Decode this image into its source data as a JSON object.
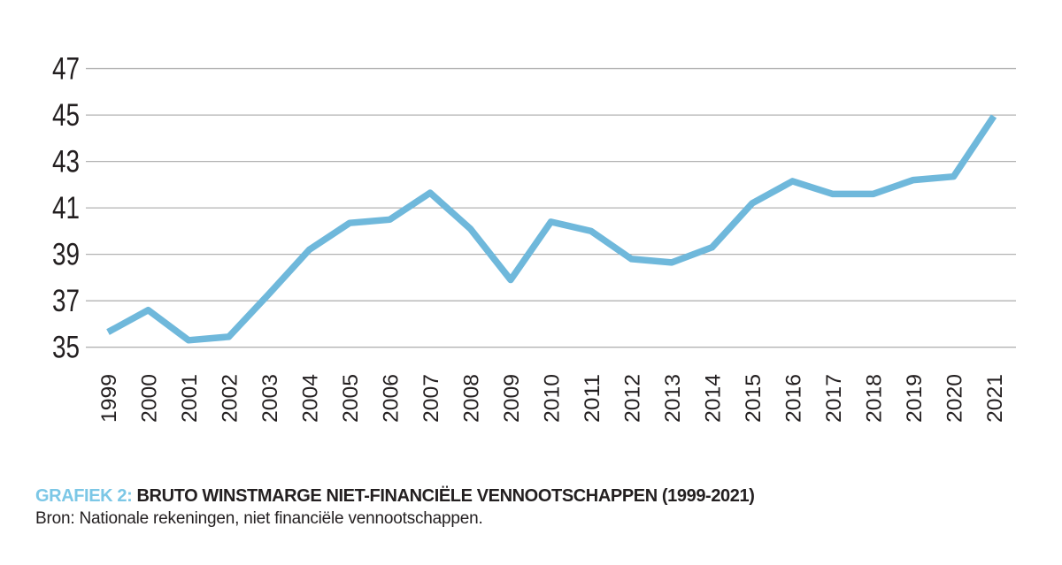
{
  "caption": {
    "label": "GRAFIEK 2:",
    "title": "BRUTO WINSTMARGE NIET-FINANCIËLE VENNOOTSCHAPPEN (1999-2021)",
    "source": "Bron: Nationale rekeningen, niet financiële vennootschappen."
  },
  "colors": {
    "line": "#6FB8DB",
    "caption_label": "#7CC7E6",
    "text": "#231F20",
    "gridline": "#B3B3B3"
  },
  "chart_data": {
    "type": "line",
    "title": "GRAFIEK 2: BRUTO WINSTMARGE NIET-FINANCIËLE VENNOOTSCHAPPEN (1999-2021)",
    "x": [
      "1999",
      "2000",
      "2001",
      "2002",
      "2003",
      "2004",
      "2005",
      "2006",
      "2007",
      "2008",
      "2009",
      "2010",
      "2011",
      "2012",
      "2013",
      "2014",
      "2015",
      "2016",
      "2017",
      "2018",
      "2019",
      "2020",
      "2021"
    ],
    "series": [
      {
        "name": "Bruto winstmarge niet-financiële vennootschappen",
        "values": [
          35.65,
          36.6,
          35.3,
          35.45,
          37.3,
          39.2,
          40.35,
          40.5,
          41.65,
          40.1,
          37.9,
          40.4,
          40.0,
          38.8,
          38.65,
          39.3,
          41.2,
          42.15,
          41.6,
          41.6,
          42.2,
          42.35,
          44.95
        ]
      }
    ],
    "xlabel": "",
    "ylabel": "",
    "ylim": [
      35,
      47
    ],
    "yticks": [
      35,
      37,
      39,
      41,
      43,
      45,
      47
    ],
    "grid": true,
    "legend": false
  }
}
